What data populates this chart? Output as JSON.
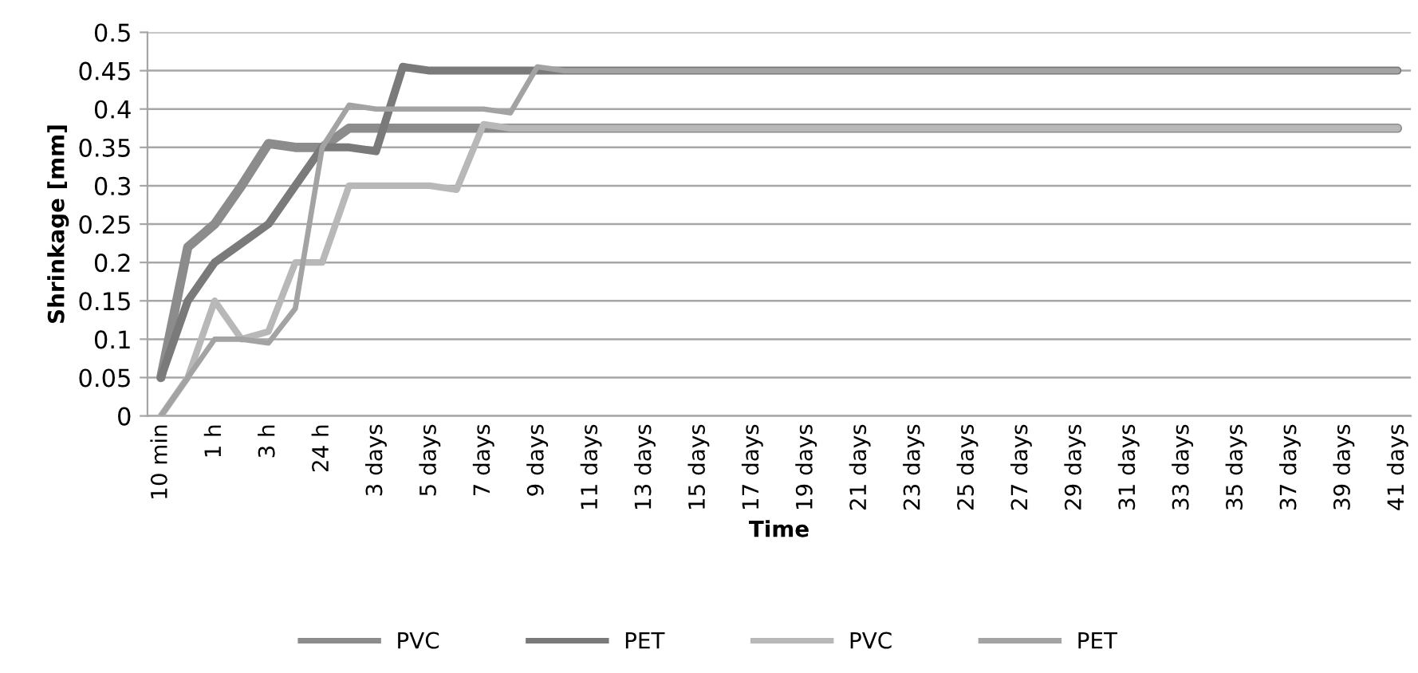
{
  "chart_data": {
    "type": "line",
    "xlabel": "Time",
    "ylabel": "Shrinkage [mm]",
    "categories": [
      "10 min",
      null,
      "1 h",
      null,
      "3 h",
      null,
      "24 h",
      null,
      "3 days",
      null,
      "5 days",
      null,
      "7 days",
      null,
      "9 days",
      null,
      "11 days",
      null,
      "13 days",
      null,
      "15 days",
      null,
      "17 days",
      null,
      "19 days",
      null,
      "21 days",
      null,
      "23 days",
      null,
      "25 days",
      null,
      "27 days",
      null,
      "29 days",
      null,
      "31 days",
      null,
      "33 days",
      null,
      "35 days",
      null,
      "37 days",
      null,
      "39 days",
      null,
      "41 days"
    ],
    "series": [
      {
        "name": "PVC",
        "color": "#8c8c8c",
        "values": [
          0.05,
          0.22,
          0.25,
          0.3,
          0.355,
          0.35,
          0.35,
          0.375,
          0.375,
          0.375,
          0.375,
          0.375,
          0.375,
          0.375,
          0.375,
          0.375,
          0.375,
          0.375,
          0.375,
          0.375,
          0.375,
          0.375,
          0.375,
          0.375,
          0.375,
          0.375,
          0.375,
          0.375,
          0.375,
          0.375,
          0.375,
          0.375,
          0.375,
          0.375,
          0.375,
          0.375,
          0.375,
          0.375,
          0.375,
          0.375,
          0.375,
          0.375,
          0.375,
          0.375,
          0.375,
          0.375,
          0.375
        ]
      },
      {
        "name": "PET",
        "color": "#7a7a7a",
        "values": [
          0.05,
          0.15,
          0.2,
          0.225,
          0.25,
          0.3,
          0.35,
          0.35,
          0.345,
          0.455,
          0.45,
          0.45,
          0.45,
          0.45,
          0.45,
          0.45,
          0.45,
          0.45,
          0.45,
          0.45,
          0.45,
          0.45,
          0.45,
          0.45,
          0.45,
          0.45,
          0.45,
          0.45,
          0.45,
          0.45,
          0.45,
          0.45,
          0.45,
          0.45,
          0.45,
          0.45,
          0.45,
          0.45,
          0.45,
          0.45,
          0.45,
          0.45,
          0.45,
          0.45,
          0.45,
          0.45,
          0.45
        ]
      },
      {
        "name": "PVC",
        "color": "#b8b8b8",
        "values": [
          0,
          0.05,
          0.15,
          0.1,
          0.11,
          0.2,
          0.2,
          0.3,
          0.3,
          0.3,
          0.3,
          0.295,
          0.38,
          0.375,
          0.375,
          0.375,
          0.375,
          0.375,
          0.375,
          0.375,
          0.375,
          0.375,
          0.375,
          0.375,
          0.375,
          0.375,
          0.375,
          0.375,
          0.375,
          0.375,
          0.375,
          0.375,
          0.375,
          0.375,
          0.375,
          0.375,
          0.375,
          0.375,
          0.375,
          0.375,
          0.375,
          0.375,
          0.375,
          0.375,
          0.375,
          0.375,
          0.375
        ]
      },
      {
        "name": "PET",
        "color": "#a3a3a3",
        "values": [
          0,
          0.05,
          0.1,
          0.1,
          0.095,
          0.14,
          0.35,
          0.405,
          0.4,
          0.4,
          0.4,
          0.4,
          0.4,
          0.395,
          0.455,
          0.45,
          0.45,
          0.45,
          0.45,
          0.45,
          0.45,
          0.45,
          0.45,
          0.45,
          0.45,
          0.45,
          0.45,
          0.45,
          0.45,
          0.45,
          0.45,
          0.45,
          0.45,
          0.45,
          0.45,
          0.45,
          0.45,
          0.45,
          0.45,
          0.45,
          0.45,
          0.45,
          0.45,
          0.45,
          0.45,
          0.45,
          0.45
        ]
      }
    ],
    "ylim": [
      0,
      0.5
    ],
    "yticks": [
      0,
      0.05,
      0.1,
      0.15,
      0.2,
      0.25,
      0.3,
      0.35,
      0.4,
      0.45,
      0.5
    ],
    "grid": "y",
    "legend": "bottom",
    "marker": "none",
    "line_style": "solid"
  }
}
